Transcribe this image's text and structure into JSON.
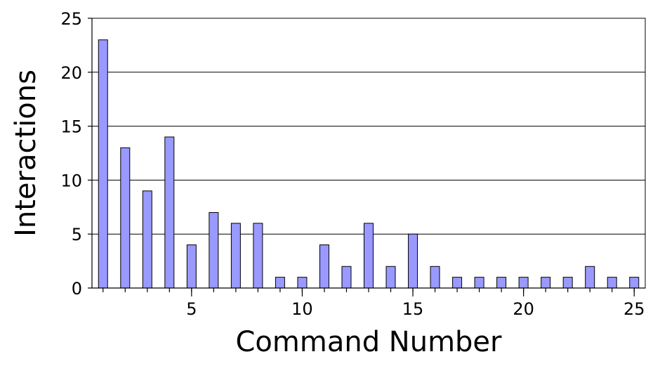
{
  "chart_data": {
    "type": "bar",
    "x_label": "Command Number",
    "y_label": "Interactions",
    "x": [
      1,
      2,
      3,
      4,
      5,
      6,
      7,
      8,
      9,
      10,
      11,
      12,
      13,
      14,
      15,
      16,
      17,
      18,
      19,
      20,
      21,
      22,
      23,
      24,
      25
    ],
    "values": [
      23,
      13,
      9,
      14,
      4,
      7,
      6,
      6,
      1,
      1,
      4,
      2,
      6,
      2,
      5,
      2,
      1,
      1,
      1,
      1,
      1,
      1,
      2,
      1,
      1
    ],
    "color": "#9999ff",
    "xlim": [
      0.5,
      25.5
    ],
    "xticks": [
      5,
      10,
      15,
      20,
      25
    ],
    "ylim": [
      0,
      25
    ],
    "yticks": [
      0,
      5,
      10,
      15,
      20,
      25
    ],
    "grid": true
  }
}
